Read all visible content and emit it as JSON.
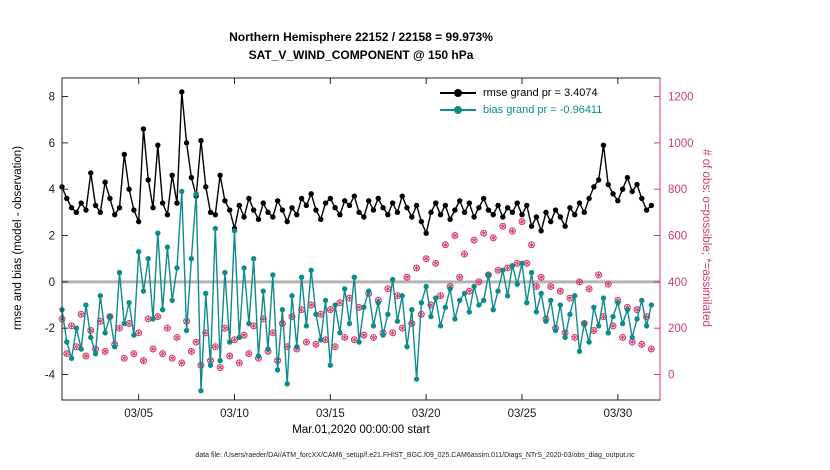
{
  "figure": {
    "title_line1": "Northern Hemisphere 22152 / 22158 = 99.973%",
    "title_line2": "SAT_V_WIND_COMPONENT @ 150 hPa",
    "xlabel": "Mar.01,2020 00:00:00 start",
    "ylabel_left": "rmse and bias (model - observation)",
    "ylabel_right": "# of obs: o=possible; *=assimilated",
    "footer": "data file: /Users/raeder/DAI/ATM_forcXX/CAM6_setup/f.e21.FHIST_BGC.f09_025.CAM6assim.011/Diags_NTrS_2020-03/obs_diag_output.nc"
  },
  "legend": {
    "rmse_label": "rmse grand pr = 3.4074",
    "bias_label": "bias grand pr = -0.96411"
  },
  "colors": {
    "rmse": "#000000",
    "bias": "#0f8b8b",
    "obs": "#d23a6e",
    "zero_line": "#b3b3b3",
    "axis": "#262626",
    "tick_label": "#1a1a1a"
  },
  "chart_data": {
    "type": "line",
    "title": "Northern Hemisphere 22152 / 22158 = 99.973% | SAT_V_WIND_COMPONENT @ 150 hPa",
    "xlabel": "Mar.01,2020 00:00:00 start",
    "ylabel": "rmse and bias (model - observation)",
    "ylabel_right": "# of obs: o=possible; *=assimilated",
    "legend_position": "top-right-inside",
    "grid": false,
    "xlim": [
      1,
      32.2
    ],
    "ylim_left": [
      -5.1,
      8.8
    ],
    "x": {
      "start_day": 1.0,
      "step_days": 0.25,
      "n": 124,
      "unit": "day of March 2020"
    },
    "x_ticks": [
      {
        "day": 5,
        "label": "03/05"
      },
      {
        "day": 10,
        "label": "03/10"
      },
      {
        "day": 15,
        "label": "03/15"
      },
      {
        "day": 20,
        "label": "03/20"
      },
      {
        "day": 25,
        "label": "03/25"
      },
      {
        "day": 30,
        "label": "03/30"
      }
    ],
    "y_ticks_left": [
      -4,
      -2,
      0,
      2,
      4,
      6,
      8
    ],
    "right_axis": {
      "scale": 100,
      "shift": -4,
      "ticks": [
        0,
        200,
        400,
        600,
        800,
        1000,
        1200
      ]
    },
    "zero_line": 0,
    "series": [
      {
        "name": "rmse",
        "grand_mean": 3.4074,
        "values": [
          4.1,
          3.6,
          3.2,
          3.0,
          3.4,
          3.1,
          4.7,
          3.3,
          3.0,
          4.3,
          3.6,
          2.9,
          3.2,
          5.5,
          4.0,
          3.1,
          2.6,
          6.6,
          4.4,
          3.2,
          5.9,
          3.4,
          2.9,
          4.6,
          3.4,
          8.2,
          6.0,
          4.5,
          3.7,
          6.1,
          4.1,
          3.0,
          2.9,
          4.6,
          3.5,
          3.1,
          2.3,
          3.3,
          2.8,
          3.6,
          3.1,
          2.7,
          3.4,
          3.0,
          2.8,
          3.5,
          3.1,
          2.6,
          3.2,
          2.9,
          3.6,
          3.3,
          3.8,
          3.1,
          2.7,
          3.4,
          3.6,
          3.2,
          2.9,
          3.5,
          3.3,
          3.7,
          3.0,
          2.8,
          3.5,
          3.1,
          3.6,
          3.2,
          2.9,
          3.4,
          3.0,
          3.7,
          3.2,
          2.8,
          3.3,
          2.6,
          2.1,
          3.0,
          3.4,
          2.9,
          3.3,
          2.7,
          3.1,
          3.5,
          3.0,
          3.4,
          2.8,
          3.2,
          3.6,
          3.1,
          2.9,
          3.3,
          2.8,
          3.2,
          3.0,
          3.4,
          2.9,
          3.3,
          2.4,
          2.8,
          2.2,
          3.0,
          2.6,
          3.1,
          2.8,
          2.4,
          3.2,
          2.9,
          3.4,
          3.0,
          3.6,
          4.1,
          4.4,
          5.9,
          4.2,
          3.8,
          3.5,
          4.0,
          4.5,
          3.9,
          4.2,
          3.6,
          3.1,
          3.3
        ]
      },
      {
        "name": "bias",
        "grand_mean": -0.96411,
        "values": [
          -1.2,
          -2.6,
          -3.3,
          -2.0,
          -2.9,
          -1.0,
          -2.4,
          -3.1,
          -0.6,
          -2.2,
          -1.5,
          -2.8,
          0.4,
          -1.8,
          -0.9,
          -2.3,
          1.3,
          -0.4,
          1.0,
          -1.6,
          2.1,
          -1.2,
          1.5,
          -0.8,
          0.6,
          3.9,
          -2.1,
          1.0,
          3.8,
          -4.7,
          -0.5,
          -3.6,
          2.3,
          -3.4,
          0.4,
          -2.6,
          2.2,
          -2.4,
          0.6,
          -1.8,
          1.0,
          -3.2,
          -0.4,
          -2.9,
          0.3,
          -3.8,
          -1.2,
          -4.4,
          -0.6,
          -2.8,
          0.2,
          -1.9,
          0.5,
          -1.4,
          -2.5,
          -0.8,
          -3.6,
          -1.0,
          -2.2,
          -0.3,
          -1.8,
          0.2,
          -2.6,
          -1.1,
          -0.4,
          -1.9,
          -0.9,
          -2.3,
          -1.4,
          0.1,
          -1.7,
          -0.6,
          -2.8,
          -1.2,
          -4.2,
          -0.9,
          -0.2,
          -1.5,
          -0.7,
          -1.9,
          -1.1,
          -0.3,
          -1.6,
          -0.8,
          -0.5,
          -1.3,
          -0.2,
          -1.0,
          -0.8,
          0.3,
          -1.2,
          -0.4,
          0.5,
          -0.6,
          0.7,
          -0.1,
          0.8,
          -0.9,
          0.4,
          -1.3,
          -0.5,
          -1.7,
          -0.8,
          -2.1,
          -1.0,
          -2.4,
          -1.4,
          -0.6,
          -3.0,
          -1.8,
          -2.6,
          -1.1,
          -1.9,
          -0.7,
          -2.2,
          -1.5,
          -0.9,
          -1.8,
          -1.2,
          -2.4,
          -1.6,
          -0.8,
          -1.9,
          -1.0
        ]
      }
    ],
    "obs_counts": {
      "marker_possible": "o",
      "marker_assimilated": "*",
      "possible": [
        240,
        90,
        210,
        120,
        260,
        80,
        190,
        110,
        230,
        100,
        250,
        130,
        200,
        70,
        220,
        90,
        180,
        60,
        240,
        110,
        250,
        90,
        200,
        70,
        160,
        50,
        230,
        100,
        140,
        40,
        180,
        60,
        120,
        30,
        200,
        80,
        150,
        50,
        170,
        90,
        210,
        70,
        240,
        100,
        180,
        60,
        220,
        120,
        250,
        110,
        280,
        140,
        300,
        130,
        260,
        150,
        280,
        120,
        310,
        160,
        330,
        150,
        290,
        170,
        350,
        160,
        320,
        180,
        370,
        180,
        340,
        200,
        420,
        220,
        460,
        260,
        500,
        300,
        480,
        340,
        560,
        380,
        600,
        420,
        520,
        360,
        580,
        400,
        610,
        430,
        590,
        450,
        640,
        460,
        620,
        480,
        660,
        480,
        560,
        380,
        420,
        240,
        380,
        200,
        360,
        180,
        330,
        160,
        400,
        220,
        370,
        190,
        430,
        250,
        390,
        210,
        320,
        160,
        290,
        140,
        280,
        130,
        250,
        110
      ],
      "assimilated_same_as_possible": true
    }
  }
}
